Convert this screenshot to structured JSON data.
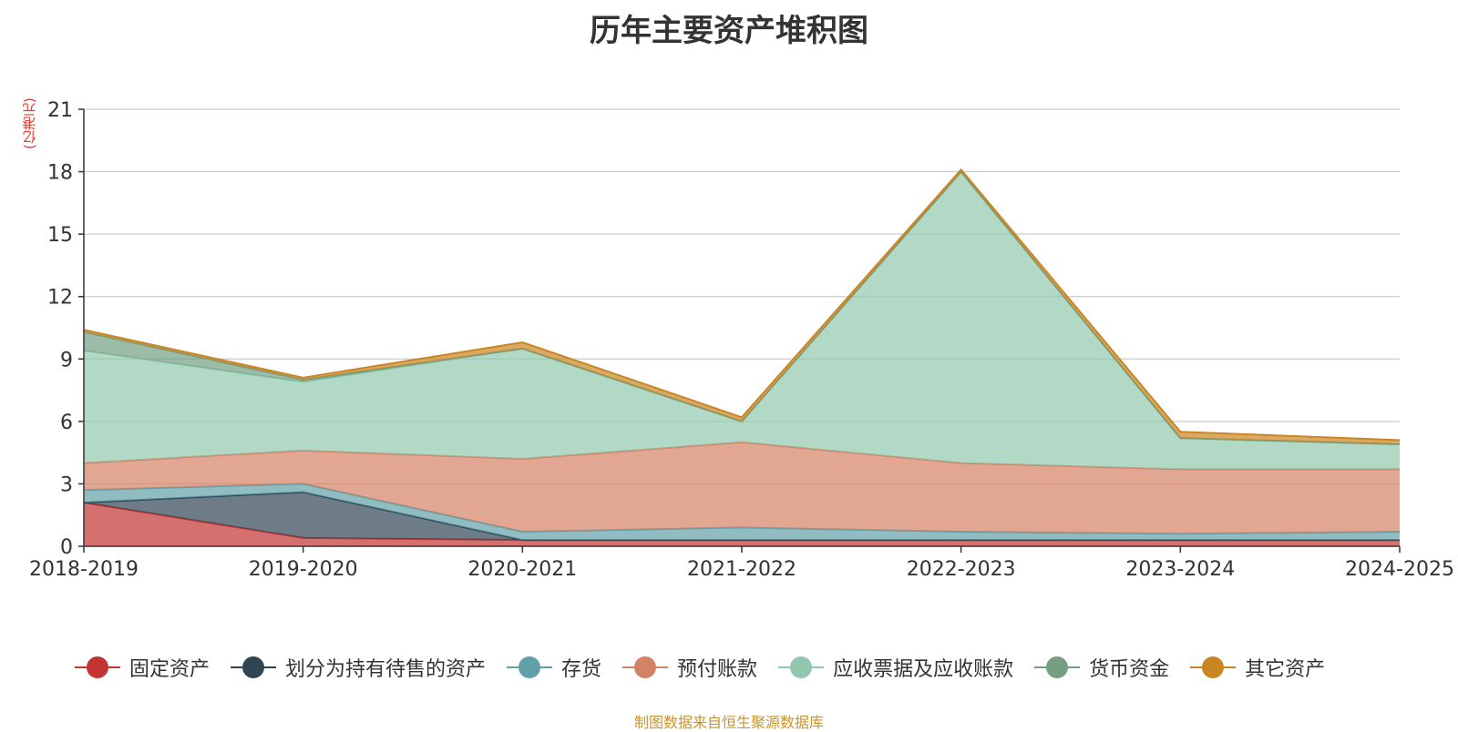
{
  "title": "历年主要资产堆积图",
  "unit": "(亿港元)",
  "source": "制图数据来自恒生聚源数据库",
  "chart_data": {
    "type": "area",
    "stacked": true,
    "title": "历年主要资产堆积图",
    "ylabel": "(亿港元)",
    "categories": [
      "2018-2019",
      "2019-2020",
      "2020-2021",
      "2021-2022",
      "2022-2023",
      "2023-2024",
      "2024-2025"
    ],
    "ylim": [
      0,
      21
    ],
    "yticks": [
      0,
      3,
      6,
      9,
      12,
      15,
      18,
      21
    ],
    "grid": true,
    "legend_position": "bottom",
    "series": [
      {
        "name": "固定资产",
        "color": "#c23531",
        "values": [
          2.1,
          0.4,
          0.3,
          0.3,
          0.3,
          0.3,
          0.3
        ]
      },
      {
        "name": "划分为持有待售的资产",
        "color": "#2f4554",
        "values": [
          0.0,
          2.2,
          0.0,
          0.0,
          0.0,
          0.0,
          0.0
        ]
      },
      {
        "name": "存货",
        "color": "#61a0a8",
        "values": [
          0.6,
          0.4,
          0.4,
          0.6,
          0.4,
          0.3,
          0.4
        ]
      },
      {
        "name": "预付账款",
        "color": "#d48265",
        "values": [
          1.3,
          1.6,
          3.5,
          4.1,
          3.3,
          3.1,
          3.0
        ]
      },
      {
        "name": "应收票据及应收账款",
        "color": "#91c7ae",
        "values": [
          5.4,
          3.3,
          5.3,
          1.0,
          14.0,
          1.5,
          1.2
        ]
      },
      {
        "name": "货币资金",
        "color": "#749f83",
        "values": [
          0.9,
          0.1,
          0.0,
          0.0,
          0.0,
          0.0,
          0.0
        ]
      },
      {
        "name": "其它资产",
        "color": "#ca8622",
        "values": [
          0.1,
          0.1,
          0.3,
          0.2,
          0.1,
          0.3,
          0.2
        ]
      }
    ]
  }
}
